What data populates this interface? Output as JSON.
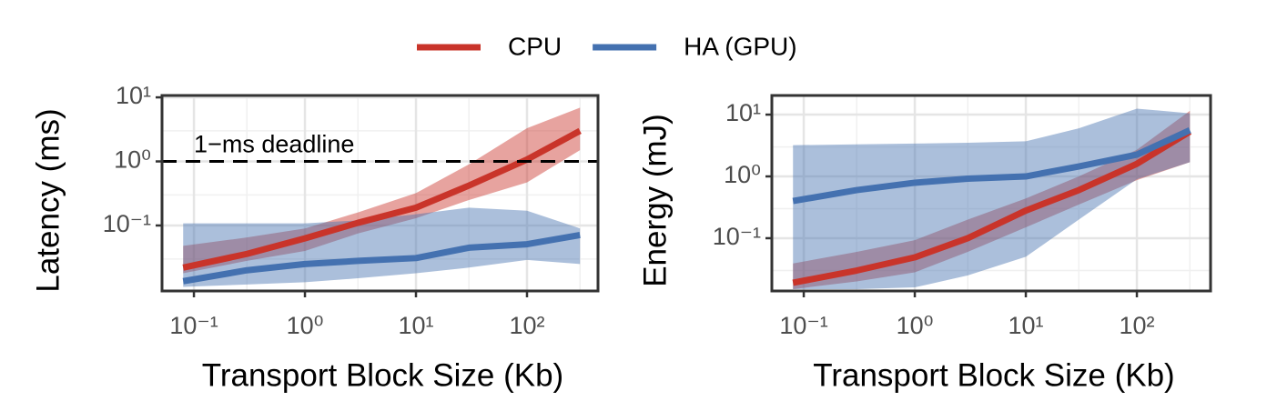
{
  "chart_data": [
    {
      "type": "line",
      "x_label": "Transport Block Size (Kb)",
      "y_label": "Latency (ms)",
      "log_x": true,
      "log_y": true,
      "grid": true,
      "xlim": [
        0.0516,
        436
      ],
      "ylim": [
        0.0095,
        10.7
      ],
      "xticks": [
        {
          "value": 0.1,
          "label": "10⁻¹"
        },
        {
          "value": 1,
          "label": "10⁰"
        },
        {
          "value": 10,
          "label": "10¹"
        },
        {
          "value": 100,
          "label": "10²"
        }
      ],
      "yticks": [
        {
          "value": 0.1,
          "label": "10⁻¹"
        },
        {
          "value": 1,
          "label": "10⁰"
        },
        {
          "value": 10,
          "label": "10¹"
        }
      ],
      "hline": 1,
      "hline_label": "1−ms deadline",
      "x": [
        0.08,
        0.3,
        1,
        3,
        10,
        30,
        100,
        300
      ],
      "series": [
        {
          "name": "CPU",
          "color": "#c9342a",
          "values": [
            0.022,
            0.036,
            0.063,
            0.11,
            0.19,
            0.42,
            1.07,
            3.0
          ],
          "lower": [
            0.018,
            0.028,
            0.04,
            0.075,
            0.13,
            0.25,
            0.47,
            1.5
          ],
          "upper": [
            0.048,
            0.065,
            0.09,
            0.16,
            0.32,
            0.9,
            3.3,
            6.9
          ]
        },
        {
          "name": "HA (GPU)",
          "color": "#4471b0",
          "values": [
            0.0135,
            0.02,
            0.025,
            0.028,
            0.031,
            0.045,
            0.051,
            0.071
          ],
          "lower": [
            0.011,
            0.012,
            0.013,
            0.015,
            0.018,
            0.022,
            0.029,
            0.025
          ],
          "upper": [
            0.108,
            0.108,
            0.108,
            0.12,
            0.15,
            0.19,
            0.17,
            0.09
          ]
        }
      ]
    },
    {
      "type": "line",
      "x_label": "Transport Block Size (Kb)",
      "y_label": "Energy (mJ)",
      "log_x": true,
      "log_y": true,
      "grid": true,
      "xlim": [
        0.0516,
        461
      ],
      "ylim": [
        0.014,
        20.4
      ],
      "xticks": [
        {
          "value": 0.1,
          "label": "10⁻¹"
        },
        {
          "value": 1,
          "label": "10⁰"
        },
        {
          "value": 10,
          "label": "10¹"
        },
        {
          "value": 100,
          "label": "10²"
        }
      ],
      "yticks": [
        {
          "value": 0.1,
          "label": "10⁻¹"
        },
        {
          "value": 1,
          "label": "10⁰"
        },
        {
          "value": 10,
          "label": "10¹"
        }
      ],
      "x": [
        0.08,
        0.3,
        1,
        3,
        10,
        30,
        100,
        300
      ],
      "series": [
        {
          "name": "CPU",
          "color": "#c9342a",
          "values": [
            0.019,
            0.03,
            0.049,
            0.1,
            0.28,
            0.6,
            1.6,
            5.3
          ],
          "lower": [
            0.015,
            0.02,
            0.028,
            0.06,
            0.15,
            0.35,
            0.87,
            1.7
          ],
          "upper": [
            0.039,
            0.06,
            0.093,
            0.2,
            0.44,
            1.0,
            2.7,
            11.5
          ]
        },
        {
          "name": "HA (GPU)",
          "color": "#4471b0",
          "values": [
            0.4,
            0.6,
            0.79,
            0.92,
            1.0,
            1.45,
            2.25,
            5.6
          ],
          "lower": [
            0.015,
            0.015,
            0.016,
            0.025,
            0.05,
            0.2,
            0.9,
            1.7
          ],
          "upper": [
            3.2,
            3.3,
            3.4,
            3.5,
            3.7,
            6.0,
            12.5,
            10.5
          ]
        }
      ]
    }
  ]
}
